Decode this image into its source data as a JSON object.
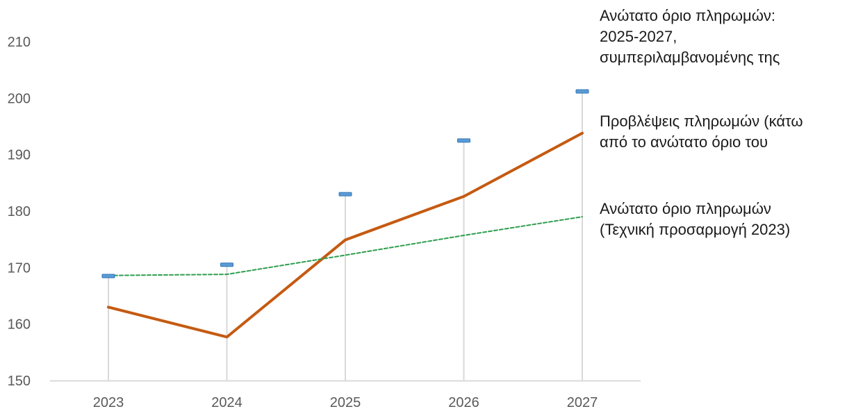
{
  "chart_data": {
    "type": "line",
    "categories": [
      "2023",
      "2024",
      "2025",
      "2026",
      "2027"
    ],
    "ylim": [
      150,
      210
    ],
    "yticks": [
      "150",
      "160",
      "170",
      "180",
      "190",
      "200",
      "210"
    ],
    "grid": false,
    "legend_placement": "right",
    "series": [
      {
        "name_lines": [
          "Ανώτατο όριο πληρωμών:",
          "2025-2027,",
          "συμπεριλαμβανομένης της"
        ],
        "style": "marker-with-drop-lines",
        "color": "#5b9bd5",
        "values": [
          168.5,
          170.5,
          183.0,
          192.5,
          201.2
        ]
      },
      {
        "name_lines": [
          "Προβλέψεις πληρωμών (κάτω",
          "από το ανώτατο όριο του"
        ],
        "style": "solid-line",
        "color": "#c55a11",
        "values": [
          163.0,
          157.7,
          174.9,
          182.6,
          193.8
        ]
      },
      {
        "name_lines": [
          "Ανώτατο όριο πληρωμών",
          "(Τεχνική προσαρμογή 2023)"
        ],
        "style": "dashed-line",
        "color": "#2e9e4f",
        "values": [
          168.6,
          168.8,
          172.2,
          175.7,
          179.0
        ]
      }
    ]
  }
}
